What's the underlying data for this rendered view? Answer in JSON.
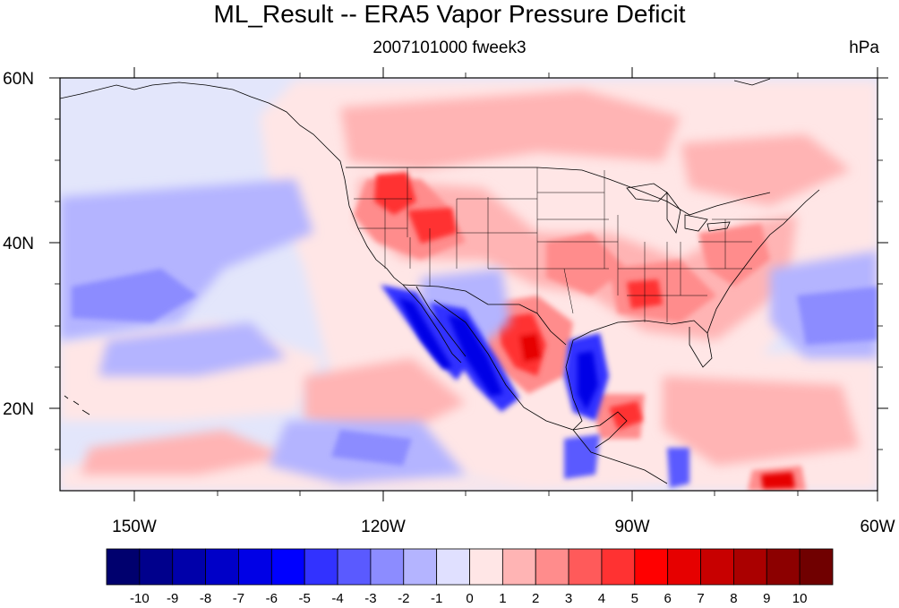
{
  "title": "ML_Result -- ERA5 Vapor Pressure Deficit",
  "subtitle": "2007101000 fweek3",
  "units": "hPa",
  "map": {
    "projection": "cylindrical equidistant",
    "lon_range": [
      -160,
      -60
    ],
    "lat_range": [
      10,
      60
    ],
    "lon_tick_labels": [
      "150W",
      "120W",
      "90W",
      "60W"
    ],
    "lat_tick_labels": [
      "20N",
      "40N",
      "60N"
    ],
    "features": [
      "coastlines",
      "US state boundaries",
      "country borders"
    ]
  },
  "colorbar": {
    "labels": [
      "-10",
      "-9",
      "-8",
      "-7",
      "-6",
      "-5",
      "-4",
      "-3",
      "-2",
      "-1",
      "0",
      "1",
      "2",
      "3",
      "4",
      "5",
      "6",
      "7",
      "8",
      "9",
      "10"
    ],
    "colors": [
      "#00006e",
      "#00008c",
      "#0000aa",
      "#0000c8",
      "#0000e6",
      "#0000ff",
      "#3232ff",
      "#5a5aff",
      "#8c8cff",
      "#b4b4ff",
      "#e0e0ff",
      "#ffe6e6",
      "#ffb4b4",
      "#ff8c8c",
      "#ff5a5a",
      "#ff3232",
      "#ff0000",
      "#e60000",
      "#c80000",
      "#aa0000",
      "#8c0000",
      "#700000"
    ]
  }
}
